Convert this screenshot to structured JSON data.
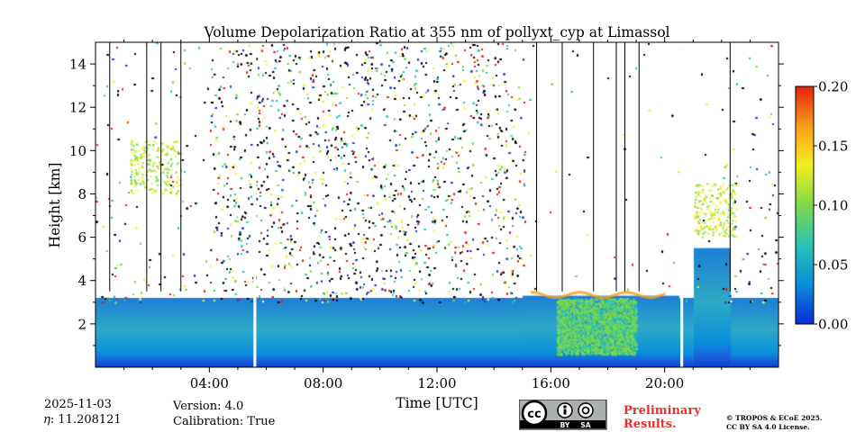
{
  "chart_data": {
    "type": "heatmap",
    "title": "Volume Depolarization Ratio at 355 nm of pollyxt_cyp at Limassol",
    "xlabel": "Time [UTC]",
    "ylabel": "Height [km]",
    "xlim": [
      0,
      24
    ],
    "ylim": [
      0,
      15
    ],
    "x_ticks": [
      {
        "value": 4,
        "label": "04:00"
      },
      {
        "value": 8,
        "label": "08:00"
      },
      {
        "value": 12,
        "label": "12:00"
      },
      {
        "value": 16,
        "label": "16:00"
      },
      {
        "value": 20,
        "label": "20:00"
      }
    ],
    "y_ticks": [
      {
        "value": 2,
        "label": "2"
      },
      {
        "value": 4,
        "label": "4"
      },
      {
        "value": 6,
        "label": "6"
      },
      {
        "value": 8,
        "label": "8"
      },
      {
        "value": 10,
        "label": "10"
      },
      {
        "value": 12,
        "label": "12"
      },
      {
        "value": 14,
        "label": "14"
      }
    ],
    "colorbar": {
      "range": [
        0.0,
        0.2
      ],
      "ticks": [
        {
          "value": 0.0,
          "label": "0.00"
        },
        {
          "value": 0.05,
          "label": "0.05"
        },
        {
          "value": 0.1,
          "label": "0.10"
        },
        {
          "value": 0.15,
          "label": "0.15"
        },
        {
          "value": 0.2,
          "label": "0.20"
        }
      ],
      "colormap": [
        "#0a2bd6",
        "#0a8fdc",
        "#29c2b4",
        "#7ed94a",
        "#f3ef1e",
        "#f8a01a",
        "#e81f10"
      ]
    },
    "data_gaps": [
      [
        5.55,
        5.65
      ],
      [
        20.55,
        20.65
      ]
    ],
    "vertical_markers": [
      0.5,
      1.8,
      2.3,
      3.0,
      15.5,
      16.4,
      17.5,
      18.3,
      18.6,
      19.1,
      22.3
    ],
    "layers": [
      {
        "name": "boundary layer",
        "t_start": 0,
        "t_end": 24,
        "h_top": 3.2,
        "value": 0.02
      },
      {
        "name": "dust layer",
        "t_start": 16.2,
        "t_end": 19.0,
        "h_bottom": 0.6,
        "h_top": 3.2,
        "value": 0.08
      },
      {
        "name": "cloud top return",
        "t_start": 15.3,
        "t_end": 20.0,
        "h": 3.4,
        "value": 0.12
      },
      {
        "name": "aloft aerosol",
        "t_start": 1.2,
        "t_end": 3.0,
        "h_bottom": 8.0,
        "h_top": 10.5,
        "value": 0.11
      },
      {
        "name": "aloft aerosol",
        "t_start": 21.0,
        "t_end": 22.5,
        "h_bottom": 6.0,
        "h_top": 8.5,
        "value": 0.1
      },
      {
        "name": "daytime noise",
        "t_start": 4.0,
        "t_end": 15.0,
        "h_bottom": 3.0,
        "h_top": 15.0,
        "value": "noise"
      }
    ]
  },
  "footer": {
    "date": "2025-11-03",
    "eta": "𝜂: 11.208121",
    "version": "Version: 4.0",
    "calibration": "Calibration: True",
    "preliminary_line1": "Preliminary",
    "preliminary_line2": "Results.",
    "license_line1": "© TROPOS & ECoE 2025.",
    "license_line2": "CC BY SA 4.0 License.",
    "cc_badge": {
      "cc": "cc",
      "by": "BY",
      "sa": "SA"
    }
  }
}
